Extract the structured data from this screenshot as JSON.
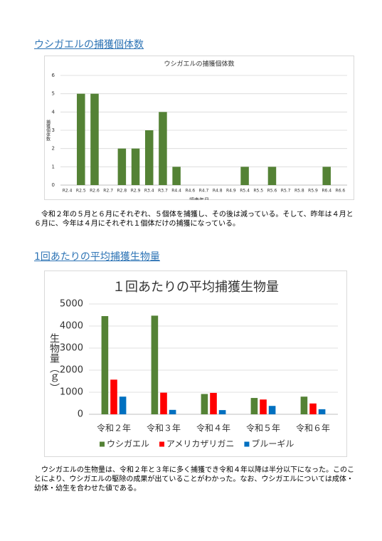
{
  "headings": [
    "ウシガエルの捕獲個体数",
    "1回あたりの平均捕獲生物量"
  ],
  "paragraphs": [
    "令和２年の５月と６月にそれぞれ、５個体を捕獲し、その後は減っている。そして、昨年は４月と６月に、今年は４月にそれぞれ１個体だけの捕獲になっている。",
    "ウシガエルの生物量は、令和２年と３年に多く捕獲でき令和４年以降は半分以下になった。このことにより、ウシガエルの駆除の成果が出ていることがわかった。なお、ウシガエルについては成体・幼体・幼生を合わせた値である。"
  ],
  "chart_data": [
    {
      "type": "bar",
      "title": "ウシガエルの捕獲個体数",
      "x_label": "調査年月",
      "y_label": "捕獲個体数",
      "categories": [
        "R2.4",
        "R2.5",
        "R2.6",
        "R2.7",
        "R2.8",
        "R2.9",
        "R3.4",
        "R3.7",
        "R4.4",
        "R4.6",
        "R4.7",
        "R4.8",
        "R4.9",
        "R5.4",
        "R5.5",
        "R5.6",
        "R5.7",
        "R5.8",
        "R5.9",
        "R6.4",
        "R6.6"
      ],
      "values": [
        0,
        5,
        5,
        0,
        2,
        2,
        3,
        4,
        1,
        0,
        0,
        0,
        0,
        1,
        0,
        1,
        0,
        0,
        0,
        1,
        0
      ],
      "color": "#548235",
      "ylim": [
        0,
        6
      ],
      "yticks": [
        0,
        1,
        2,
        3,
        4,
        5,
        6
      ],
      "grid": true
    },
    {
      "type": "bar",
      "title": "１回あたりの平均捕獲生物量",
      "y_label": "生物量（ｇ）",
      "categories": [
        "令和２年",
        "令和３年",
        "令和４年",
        "令和５年",
        "令和６年"
      ],
      "series": [
        {
          "name": "ウシガエル",
          "color": "#548235",
          "values": [
            4450,
            4470,
            920,
            740,
            800
          ]
        },
        {
          "name": "アメリカザリガニ",
          "color": "#ff0000",
          "values": [
            1570,
            980,
            970,
            670,
            490
          ]
        },
        {
          "name": "ブルーギル",
          "color": "#0070c0",
          "values": [
            800,
            200,
            190,
            380,
            230
          ]
        }
      ],
      "ylim": [
        0,
        5000
      ],
      "yticks": [
        0,
        1000,
        2000,
        3000,
        4000,
        5000
      ],
      "grid": true,
      "legend": "bottom"
    }
  ]
}
